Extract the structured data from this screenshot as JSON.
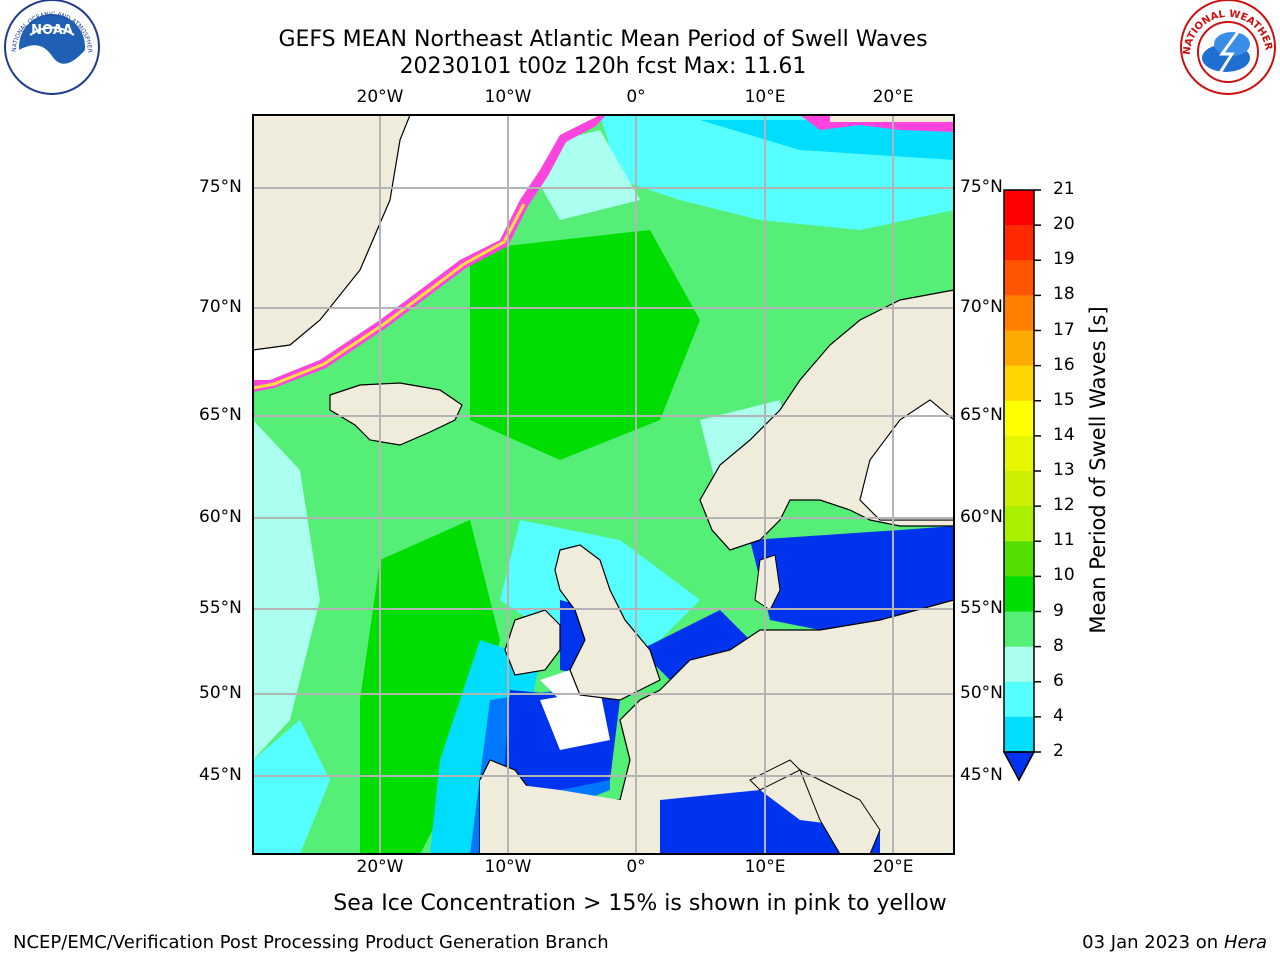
{
  "title": {
    "line1": "GEFS MEAN Northeast Atlantic Mean Period of Swell Waves",
    "line2": "20230101 t00z 120h fcst   Max: 11.61"
  },
  "axes": {
    "lon_labels": [
      "20°W",
      "10°W",
      "0°",
      "10°E",
      "20°E"
    ],
    "lon_values": [
      -20,
      -10,
      0,
      10,
      20
    ],
    "lat_labels": [
      "75°N",
      "70°N",
      "65°N",
      "60°N",
      "55°N",
      "50°N",
      "45°N"
    ],
    "lat_values": [
      75,
      70,
      65,
      60,
      55,
      50,
      45
    ],
    "lon_range": [
      -30,
      25
    ],
    "lat_range": [
      41,
      78
    ]
  },
  "colorbar": {
    "label": "Mean Period of Swell Waves [s]",
    "ticks": [
      "21",
      "20",
      "19",
      "18",
      "17",
      "16",
      "15",
      "14",
      "13",
      "12",
      "11",
      "10",
      "9",
      "8",
      "6",
      "4",
      "2"
    ],
    "colors": [
      "#ff0000",
      "#ff2a00",
      "#ff5500",
      "#ff8000",
      "#ffaa00",
      "#ffd500",
      "#ffff00",
      "#e6f500",
      "#ccee00",
      "#aaee00",
      "#55dd00",
      "#00dd00",
      "#55ee77",
      "#aaffee",
      "#55ffff",
      "#00ddff",
      "#0077ff"
    ],
    "extend_color": "#0033ee"
  },
  "note": "Sea Ice Concentration > 15% is shown in pink to yellow",
  "footer": {
    "left": "NCEP/EMC/Verification Post Processing Product Generation Branch",
    "right_date": "03 Jan 2023 on",
    "right_host": "Hera"
  },
  "logos": {
    "noaa_text": "NOAA",
    "noaa_ring": "NATIONAL OCEANIC AND ATMOSPHERIC ADMINISTRATION · U.S. DEPARTMENT OF COMMERCE",
    "nws_ring": "NATIONAL WEATHER SERVICE"
  },
  "colors": {
    "land": "#efecdc",
    "ice_free_land": "#ffffff",
    "grid": "#b4b4b4",
    "sea_ice_pink": "#ff44dd",
    "sea_ice_yellow": "#ffdd44"
  }
}
